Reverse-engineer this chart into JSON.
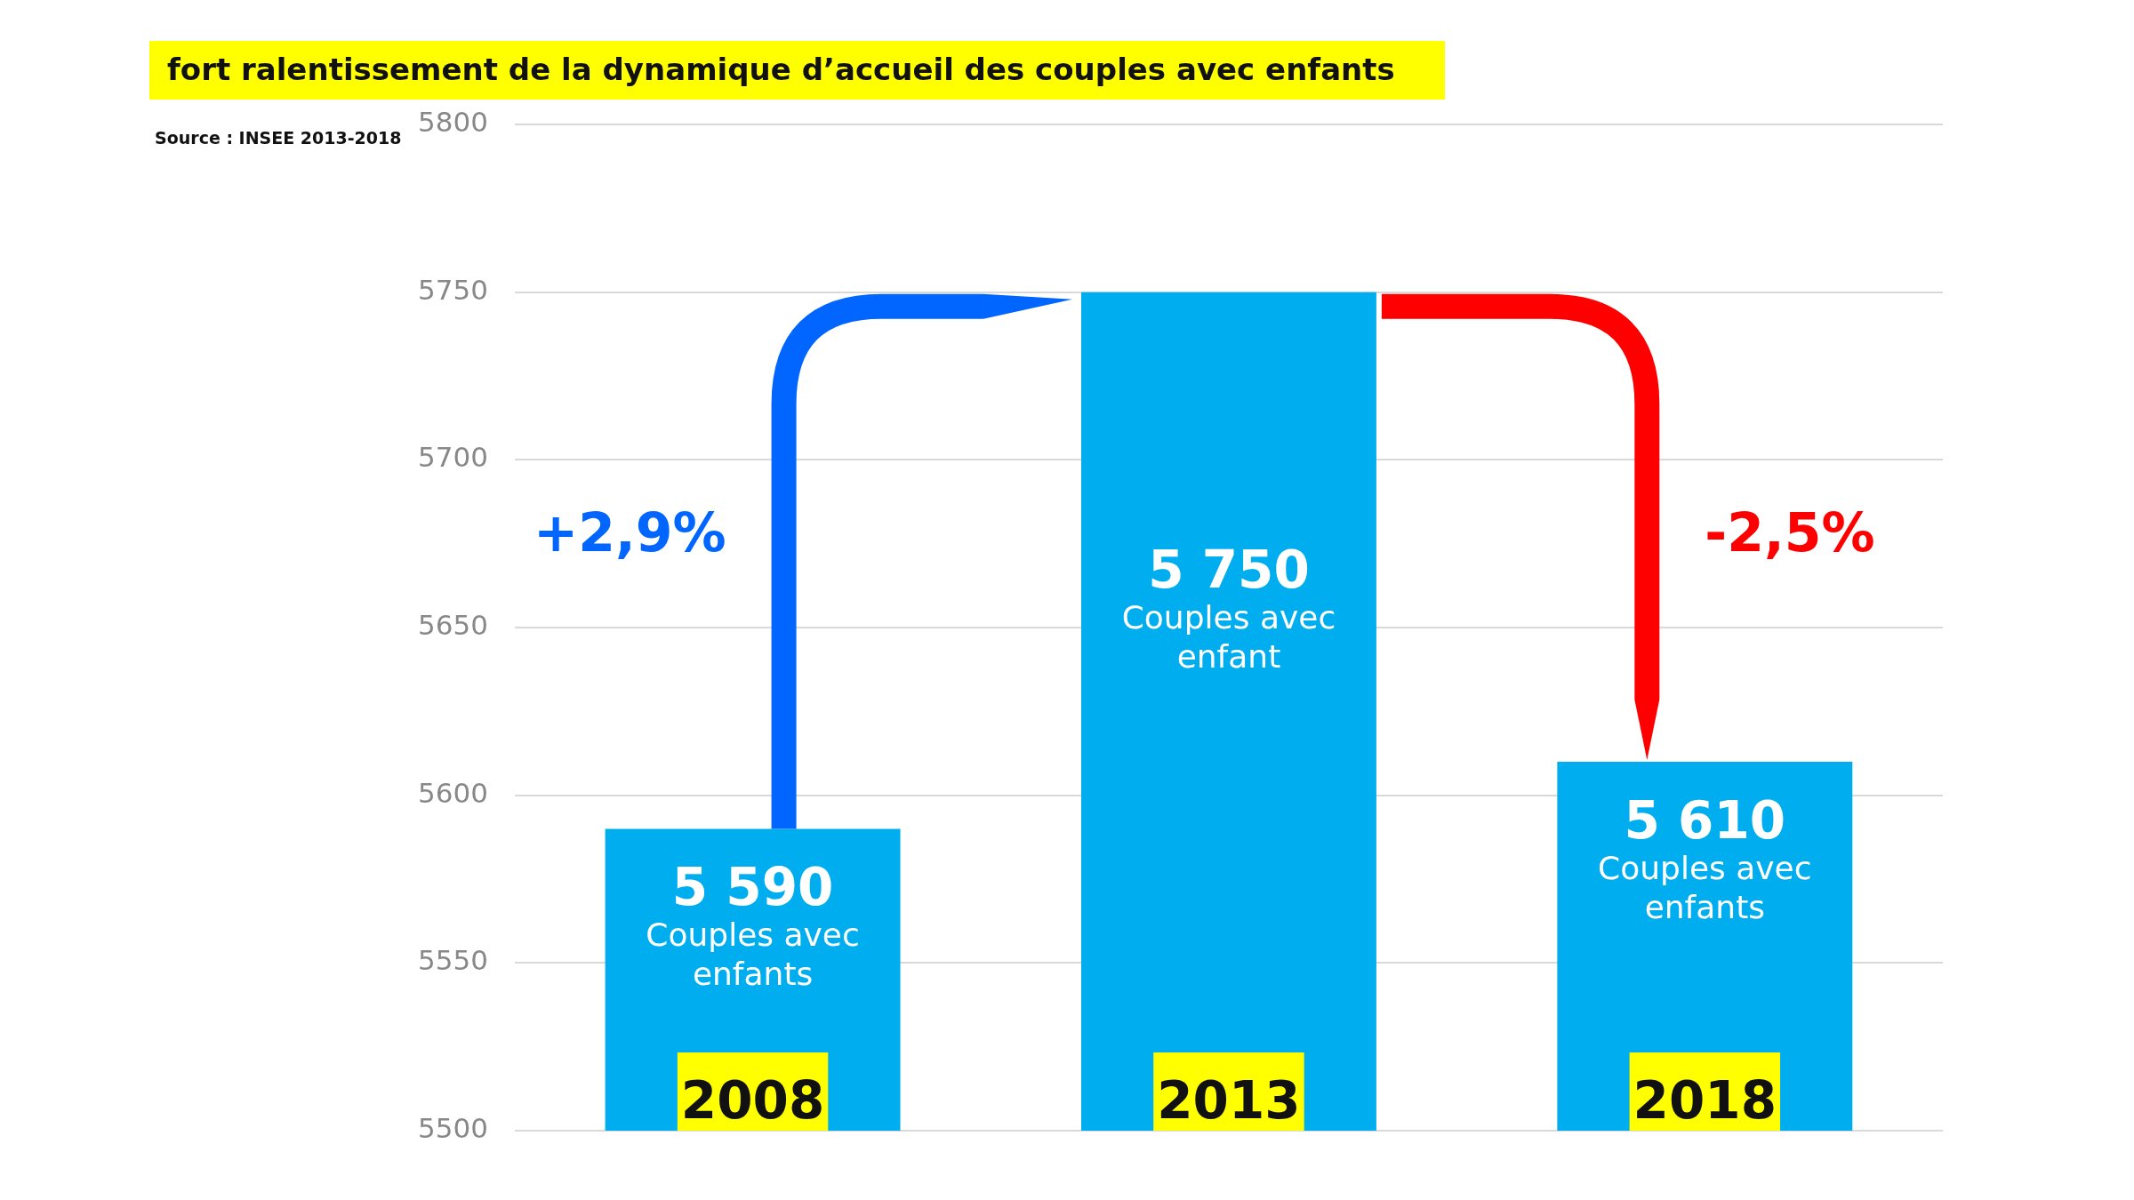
{
  "chart_data": {
    "type": "bar",
    "title": "fort ralentissement de la dynamique d’accueil des couples avec enfants",
    "categories": [
      "2008",
      "2013",
      "2018"
    ],
    "values": [
      5590,
      5750,
      5610
    ],
    "value_labels": [
      "5 590",
      "5 750",
      "5 610"
    ],
    "color": "#00aeef",
    "ylim": [
      5500,
      5800
    ],
    "yticks": [
      5500,
      5550,
      5600,
      5650,
      5700,
      5750,
      5800
    ],
    "grid": "y",
    "legend": false,
    "annotations": [
      "Source : INSEE 2013-2018",
      "+2,9%",
      "-2,5%",
      "Couples avec enfants",
      "Couples avec enfant",
      "Couples avec enfants"
    ]
  }
}
